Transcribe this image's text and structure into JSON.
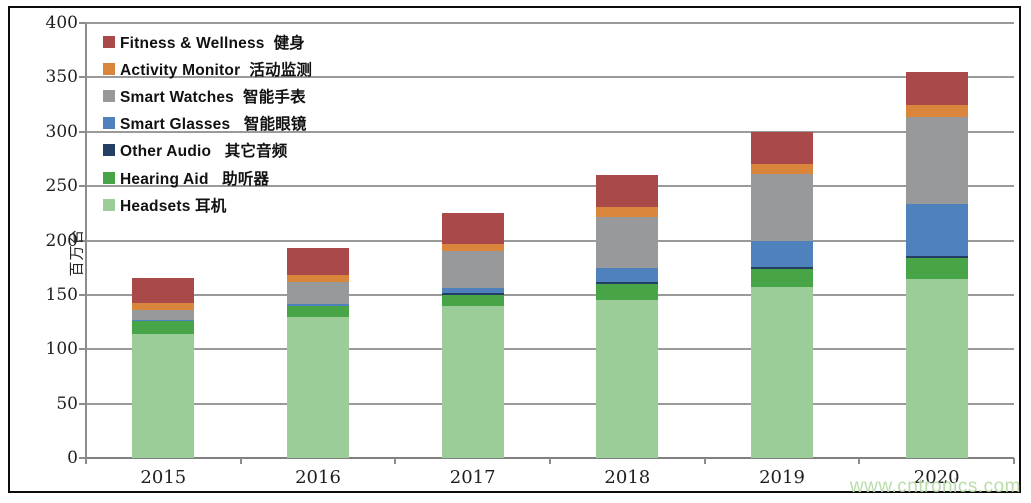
{
  "page": {
    "watermark": "www.cntronics.com"
  },
  "chart_data": {
    "type": "bar",
    "variant": "stacked-vertical-column",
    "title": "",
    "xlabel": "",
    "ylabel": "百万台",
    "ylim": [
      0,
      400
    ],
    "ytick_step": 50,
    "yticks": [
      "0",
      "50",
      "100",
      "150",
      "200",
      "250",
      "300",
      "350",
      "400"
    ],
    "grid": true,
    "legend_position": "top-left-overlay",
    "categories": [
      "2015",
      "2016",
      "2017",
      "2018",
      "2019",
      "2020"
    ],
    "series": [
      {
        "name": "Headsets 耳机",
        "label": "Headsets 耳机",
        "color": "#9ccc97",
        "values": [
          114,
          130,
          140,
          145,
          157,
          165
        ]
      },
      {
        "name": "Hearing Aid 助听器",
        "label": "Hearing Aid   助听器",
        "color": "#47a447",
        "values": [
          12,
          10,
          10,
          15,
          17,
          19
        ]
      },
      {
        "name": "Other Audio 其它音频",
        "label": "Other Audio   其它音频",
        "color": "#243f63",
        "values": [
          0,
          0,
          2,
          2,
          2,
          2
        ]
      },
      {
        "name": "Smart Glasses 智能眼镜",
        "label": "Smart Glasses   智能眼镜",
        "color": "#4f81bd",
        "values": [
          1,
          2,
          4,
          13,
          24,
          48
        ]
      },
      {
        "name": "Smart Watches 智能手表",
        "label": "Smart Watches  智能手表",
        "color": "#97999b",
        "values": [
          9,
          20,
          34,
          47,
          61,
          80
        ]
      },
      {
        "name": "Activity Monitor 活动监测",
        "label": "Activity Monitor  活动监测",
        "color": "#d9863c",
        "values": [
          7,
          6,
          7,
          9,
          9,
          11
        ]
      },
      {
        "name": "Fitness & Wellness 健身",
        "label": "Fitness & Wellness  健身",
        "color": "#a94949",
        "values": [
          23,
          25,
          28,
          29,
          30,
          30
        ]
      }
    ],
    "totals": [
      166,
      193,
      225,
      260,
      300,
      355
    ],
    "note_stacking": "series listed bottom-to-top; legend shown top-to-bottom reversed",
    "colors": {
      "gridline": "#9a9a9a",
      "axis": "#808080",
      "frame": "#000000",
      "background": "#ffffff",
      "tick_label": "#1f1f1f",
      "watermark": "#b7dba6"
    }
  }
}
